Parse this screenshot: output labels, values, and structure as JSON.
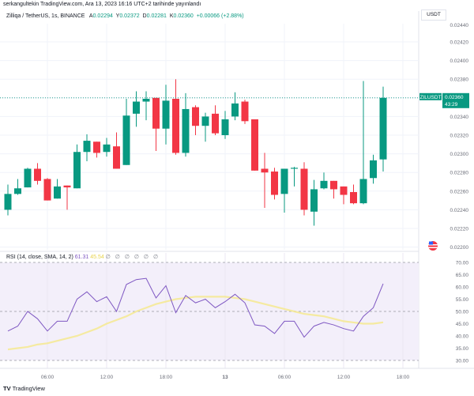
{
  "header": {
    "published": "serkangultekin TradingView.com, Ara 13, 2023 16:16 UTC+2 tarihinde yayınlandı"
  },
  "legend": {
    "symbol": "Zilliqa / TetherUS, 1s, BINANCE",
    "o_label": "A",
    "o": "0.02294",
    "h_label": "Y",
    "h": "0.02372",
    "l_label": "D",
    "l": "0.02281",
    "c_label": "K",
    "c": "0.02360",
    "change": "+0.00066 (+2.88%)"
  },
  "price_axis": {
    "unit": "USDT",
    "current_symbol": "ZILUSDT",
    "current_price": "0.02360",
    "countdown": "43:29"
  },
  "rsi_legend": {
    "title": "RSI (14, close, SMA, 14, 2)",
    "rsi": "61.31",
    "sma": "45.54",
    "extras": "∅ ∅ ∅ ∅ ∅ ∅"
  },
  "brand": {
    "name": "TradingView",
    "mark": "TV"
  },
  "colors": {
    "up": "#089981",
    "down": "#f23645",
    "rsi": "#7e57c2",
    "rsi_sma": "#f5e98a",
    "rsi_band": "#f3effa"
  },
  "chart_data": [
    {
      "type": "candlestick",
      "ylim": [
        0.022,
        0.0244
      ],
      "yticks": [
        "0.02440",
        "0.02420",
        "0.02400",
        "0.02380",
        "0.02360",
        "0.02340",
        "0.02320",
        "0.02300",
        "0.02280",
        "0.02260",
        "0.02240",
        "0.02220",
        "0.02200"
      ],
      "xticks": [
        {
          "i": 4,
          "label": "06:00"
        },
        {
          "i": 10,
          "label": "12:00"
        },
        {
          "i": 16,
          "label": "18:00"
        },
        {
          "i": 22,
          "label": "13"
        },
        {
          "i": 28,
          "label": "06:00"
        },
        {
          "i": 34,
          "label": "12:00"
        },
        {
          "i": 40,
          "label": "18:00"
        }
      ],
      "ohlc": [
        [
          0.0224,
          0.02267,
          0.02234,
          0.02257
        ],
        [
          0.02257,
          0.02273,
          0.02256,
          0.02263
        ],
        [
          0.02264,
          0.02285,
          0.02264,
          0.02284
        ],
        [
          0.02284,
          0.0229,
          0.02267,
          0.02271
        ],
        [
          0.02273,
          0.02274,
          0.0225,
          0.0225
        ],
        [
          0.02252,
          0.02273,
          0.02252,
          0.02265
        ],
        [
          0.02266,
          0.02266,
          0.0224,
          0.02264
        ],
        [
          0.02263,
          0.0231,
          0.02263,
          0.02302
        ],
        [
          0.02302,
          0.02321,
          0.02292,
          0.02314
        ],
        [
          0.02313,
          0.02313,
          0.02296,
          0.02301
        ],
        [
          0.02302,
          0.02317,
          0.02297,
          0.0231
        ],
        [
          0.02308,
          0.02323,
          0.02284,
          0.02284
        ],
        [
          0.02288,
          0.02359,
          0.02288,
          0.02341
        ],
        [
          0.02343,
          0.02367,
          0.02329,
          0.02356
        ],
        [
          0.02356,
          0.02367,
          0.02336,
          0.02359
        ],
        [
          0.0236,
          0.0236,
          0.02303,
          0.02327
        ],
        [
          0.02327,
          0.02374,
          0.0231,
          0.02357
        ],
        [
          0.02359,
          0.0238,
          0.02299,
          0.02301
        ],
        [
          0.02301,
          0.02365,
          0.02297,
          0.02348
        ],
        [
          0.0235,
          0.02352,
          0.0232,
          0.0233
        ],
        [
          0.0233,
          0.02344,
          0.02313,
          0.0234
        ],
        [
          0.02343,
          0.02352,
          0.0232,
          0.02322
        ],
        [
          0.0232,
          0.02346,
          0.02316,
          0.02337
        ],
        [
          0.0234,
          0.02366,
          0.02336,
          0.02354
        ],
        [
          0.02356,
          0.02358,
          0.02332,
          0.02335
        ],
        [
          0.02337,
          0.02337,
          0.02282,
          0.02282
        ],
        [
          0.02284,
          0.02301,
          0.02242,
          0.0228
        ],
        [
          0.02281,
          0.02285,
          0.02251,
          0.02256
        ],
        [
          0.02257,
          0.02284,
          0.02237,
          0.02284
        ],
        [
          0.02284,
          0.02286,
          0.02265,
          0.02285
        ],
        [
          0.02284,
          0.02291,
          0.02234,
          0.0224
        ],
        [
          0.02238,
          0.02272,
          0.02223,
          0.02262
        ],
        [
          0.02263,
          0.0228,
          0.02262,
          0.02271
        ],
        [
          0.02271,
          0.02271,
          0.02252,
          0.02262
        ],
        [
          0.02265,
          0.02265,
          0.02246,
          0.02256
        ],
        [
          0.02259,
          0.02267,
          0.02246,
          0.02247
        ],
        [
          0.02247,
          0.02378,
          0.02246,
          0.02273
        ],
        [
          0.02274,
          0.02299,
          0.02268,
          0.02293
        ],
        [
          0.02294,
          0.02372,
          0.02281,
          0.0236
        ]
      ],
      "last_price": 0.0236
    },
    {
      "type": "line",
      "ylim": [
        30,
        70
      ],
      "yticks": [
        "70.00",
        "65.00",
        "60.00",
        "55.00",
        "50.00",
        "45.00",
        "40.00",
        "35.00",
        "30.00"
      ],
      "bands": [
        70,
        50,
        30
      ],
      "series": [
        {
          "name": "RSI",
          "values": [
            42,
            44,
            50,
            47,
            42,
            46,
            46,
            55,
            58,
            54,
            56,
            50,
            61,
            63,
            63.5,
            55.5,
            60.5,
            49.5,
            56.5,
            53.5,
            55,
            51.5,
            54,
            57,
            53.5,
            44.5,
            44,
            41,
            46,
            46,
            39.5,
            44,
            45.5,
            44.5,
            43,
            42,
            48,
            51.5,
            61.31
          ]
        },
        {
          "name": "SMA",
          "values": [
            34.5,
            35,
            35.5,
            36.5,
            37,
            38,
            39,
            40,
            41.5,
            43,
            45,
            46.5,
            48,
            50,
            51.5,
            53,
            54,
            55,
            55.5,
            56,
            56,
            56,
            56,
            55.5,
            55,
            54,
            53,
            52,
            51,
            50,
            49,
            48.5,
            48,
            47,
            46,
            45.5,
            45,
            45,
            45.54
          ]
        }
      ]
    }
  ]
}
